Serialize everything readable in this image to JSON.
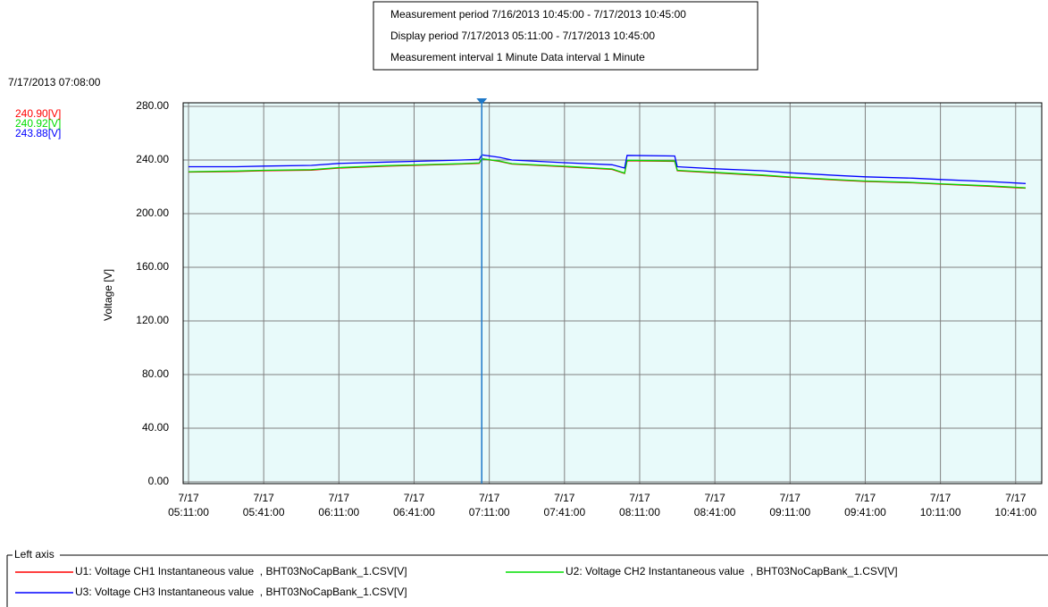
{
  "header": [
    "Measurement period  7/16/2013 10:45:00 - 7/17/2013 10:45:00",
    "Display period  7/17/2013 05:11:00 - 7/17/2013 10:45:00",
    "Measurement interval  1 Minute  Data interval  1 Minute"
  ],
  "chart_data": {
    "type": "line",
    "y_label": "Voltage [V]",
    "x": [
      "7/17 05:11:00",
      "7/17 05:30:00",
      "7/17 05:41:00",
      "7/17 06:00:00",
      "7/17 06:11:00",
      "7/17 06:30:00",
      "7/17 06:41:00",
      "7/17 07:00:00",
      "7/17 07:07:00",
      "7/17 07:08:00",
      "7/17 07:15:00",
      "7/17 07:20:00",
      "7/17 07:41:00",
      "7/17 08:00:00",
      "7/17 08:05:00",
      "7/17 08:06:00",
      "7/17 08:25:00",
      "7/17 08:26:00",
      "7/17 08:41:00",
      "7/17 09:00:00",
      "7/17 09:11:00",
      "7/17 09:30:00",
      "7/17 09:41:00",
      "7/17 10:00:00",
      "7/17 10:11:00",
      "7/17 10:30:00",
      "7/17 10:45:00"
    ],
    "series": [
      {
        "name": "U1: Voltage CH1 Instantaneous value  , BHT03NoCapBank_1.CSV[V]",
        "color": "#ff0000",
        "values": [
          231,
          231.5,
          232,
          232.5,
          234,
          235.5,
          236,
          237,
          237.5,
          240.9,
          239,
          237,
          235,
          233,
          230,
          239.5,
          239,
          232,
          230.5,
          228.5,
          227,
          225,
          224,
          223,
          222,
          220.5,
          219
        ]
      },
      {
        "name": "U2: Voltage CH2 Instantaneous value  , BHT03NoCapBank_1.CSV[V]",
        "color": "#00dd00",
        "values": [
          231.3,
          231.8,
          232.3,
          232.8,
          234.3,
          235.8,
          236.3,
          237.3,
          237.8,
          240.92,
          239.3,
          237.3,
          235.3,
          233.3,
          230.3,
          239.8,
          239.3,
          232.3,
          230.8,
          228.8,
          227.3,
          225.3,
          224.3,
          223.3,
          222.3,
          220.8,
          219.3
        ]
      },
      {
        "name": "U3: Voltage CH3 Instantaneous value  , BHT03NoCapBank_1.CSV[V]",
        "color": "#0000ff",
        "values": [
          235,
          235,
          235.5,
          236,
          237.5,
          238.5,
          239,
          240,
          240.5,
          243.88,
          242,
          240,
          238,
          236.5,
          234,
          243.5,
          243,
          235,
          233.5,
          232,
          230.5,
          228.5,
          227.5,
          226.5,
          225.5,
          224,
          222.5
        ]
      }
    ],
    "xlim": [
      "7/17 05:11:00",
      "7/17 10:45:00"
    ],
    "xticks": [
      "7/17 05:11:00",
      "7/17 05:41:00",
      "7/17 06:11:00",
      "7/17 06:41:00",
      "7/17 07:11:00",
      "7/17 07:41:00",
      "7/17 08:11:00",
      "7/17 08:41:00",
      "7/17 09:11:00",
      "7/17 09:41:00",
      "7/17 10:11:00",
      "7/17 10:41:00"
    ],
    "ylim": [
      0,
      280
    ],
    "yticks": [
      {
        "value": 0,
        "label": "0.00"
      },
      {
        "value": 40,
        "label": "40.00"
      },
      {
        "value": 80,
        "label": "80.00"
      },
      {
        "value": 120,
        "label": "120.00"
      },
      {
        "value": 160,
        "label": "160.00"
      },
      {
        "value": 200,
        "label": "200.00"
      },
      {
        "value": 240,
        "label": "240.00"
      },
      {
        "value": 280,
        "label": "280.00"
      }
    ],
    "grid": true,
    "cursor": {
      "label": "7/17/2013 07:08:00",
      "values": [
        240.9,
        240.92,
        243.88
      ],
      "value_labels": [
        "240.90[V]",
        "240.92[V]",
        "243.88[V]"
      ]
    },
    "legend_title": "Left axis"
  }
}
